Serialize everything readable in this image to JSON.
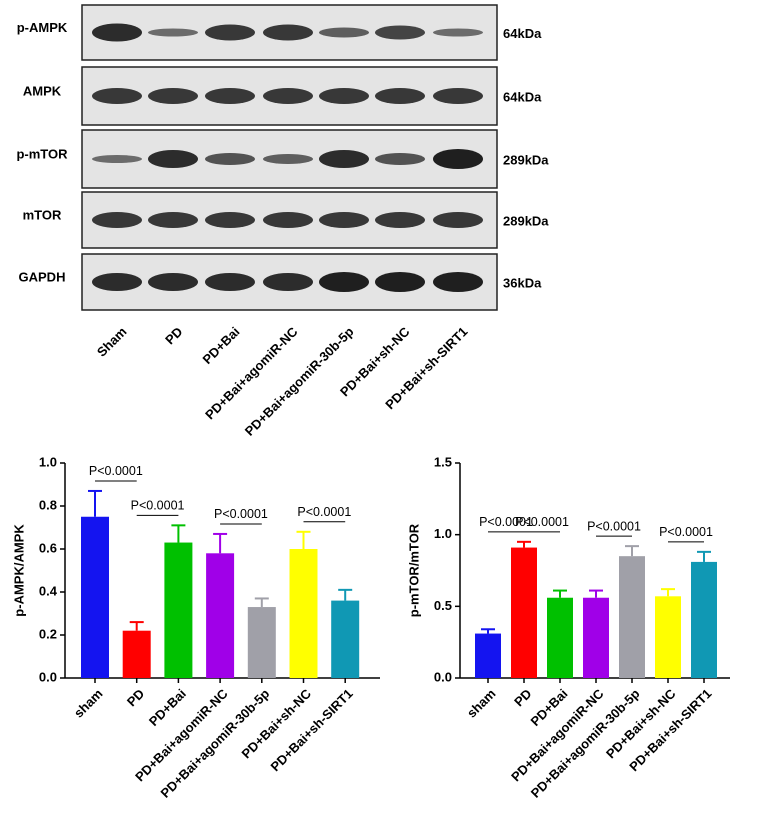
{
  "blot": {
    "rows": [
      {
        "label": "p-AMPK",
        "kda": "64kDa"
      },
      {
        "label": "AMPK",
        "kda": "64kDa"
      },
      {
        "label": "p-mTOR",
        "kda": "289kDa"
      },
      {
        "label": "mTOR",
        "kda": "289kDa"
      },
      {
        "label": "GAPDH",
        "kda": "36kDa"
      }
    ],
    "lanes": [
      "Sham",
      "PD",
      "PD+Bai",
      "PD+Bai+agomiR-NC",
      "PD+Bai+agomiR-30b-5p",
      "PD+Bai+sh-NC",
      "PD+Bai+sh-SIRT1"
    ]
  },
  "chart_data": [
    {
      "type": "bar",
      "ylabel": "p-AMPK/AMPK",
      "categories": [
        "sham",
        "PD",
        "PD+Bai",
        "PD+Bai+agomiR-NC",
        "PD+Bai+agomiR-30b-5p",
        "PD+Bai+sh-NC",
        "PD+Bai+sh-SIRT1"
      ],
      "values": [
        0.75,
        0.22,
        0.63,
        0.58,
        0.33,
        0.6,
        0.36
      ],
      "errors": [
        0.12,
        0.04,
        0.08,
        0.09,
        0.04,
        0.08,
        0.05
      ],
      "colors": [
        "#1414f0",
        "#ff0000",
        "#00c000",
        "#a000e8",
        "#a0a0a8",
        "#ffff00",
        "#1098b4"
      ],
      "ylim": [
        0,
        1
      ],
      "yticks": [
        {
          "value": 0,
          "label": "0.0"
        },
        0.2,
        0.4,
        0.6,
        0.8,
        {
          "value": 1,
          "label": "1.0"
        }
      ],
      "annotations": [
        {
          "text": "P<0.0001",
          "between": [
            0,
            1
          ]
        },
        {
          "text": "P<0.0001",
          "between": [
            1,
            2
          ]
        },
        {
          "text": "P<0.0001",
          "between": [
            3,
            4
          ]
        },
        {
          "text": "P<0.0001",
          "between": [
            5,
            6
          ]
        }
      ]
    },
    {
      "type": "bar",
      "ylabel": "p-mTOR/mTOR",
      "categories": [
        "sham",
        "PD",
        "PD+Bai",
        "PD+Bai+agomiR-NC",
        "PD+Bai+agomiR-30b-5p",
        "PD+Bai+sh-NC",
        "PD+Bai+sh-SIRT1"
      ],
      "values": [
        0.31,
        0.91,
        0.56,
        0.56,
        0.85,
        0.57,
        0.81
      ],
      "errors": [
        0.03,
        0.04,
        0.05,
        0.05,
        0.07,
        0.05,
        0.07
      ],
      "colors": [
        "#1414f0",
        "#ff0000",
        "#00c000",
        "#a000e8",
        "#a0a0a8",
        "#ffff00",
        "#1098b4"
      ],
      "ylim": [
        0,
        1.5
      ],
      "yticks": [
        {
          "value": 0,
          "label": "0.0"
        },
        0.5,
        {
          "value": 1,
          "label": "1.0"
        },
        1.5
      ],
      "annotations": [
        {
          "text": "P<0.0001",
          "between": [
            0,
            1
          ]
        },
        {
          "text": "P<0.0001",
          "between": [
            1,
            2
          ]
        },
        {
          "text": "P<0.0001",
          "between": [
            3,
            4
          ]
        },
        {
          "text": "P<0.0001",
          "between": [
            5,
            6
          ]
        }
      ]
    }
  ]
}
